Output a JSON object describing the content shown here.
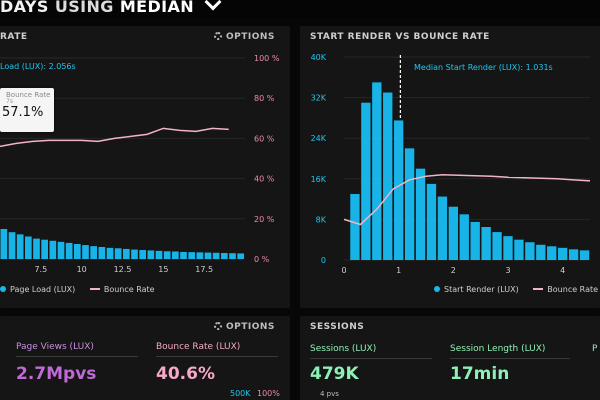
{
  "header": {
    "title_prefix": "DAYS",
    "title_mid": "USING",
    "title_bold": "MEDIAN"
  },
  "left_panel": {
    "title": "RATE",
    "options_label": "OPTIONS",
    "median_note": "Load (LUX): 2.056s",
    "tooltip": {
      "line1": "Bounce Rate",
      "line2": "7s",
      "value": "57.1%"
    },
    "legend": [
      "Page Load (LUX)",
      "Bounce Rate"
    ]
  },
  "right_panel": {
    "title": "START RENDER VS BOUNCE RATE",
    "median_note": "Median Start Render (LUX): 1.031s",
    "legend": [
      "Start Render (LUX)",
      "Bounce Rate"
    ]
  },
  "bottom_left": {
    "options_label": "OPTIONS",
    "metrics": [
      {
        "label": "Page Views (LUX)",
        "value": "2.7Mpvs"
      },
      {
        "label": "Bounce Rate (LUX)",
        "value": "40.6%"
      }
    ],
    "scale_ticks": [
      "500K",
      "100%"
    ]
  },
  "bottom_right": {
    "title": "SESSIONS",
    "metrics": [
      {
        "label": "Sessions (LUX)",
        "value": "479K",
        "sub": "4 pvs"
      },
      {
        "label": "Session Length (LUX)",
        "value": "17min"
      },
      {
        "label": "P",
        "value": ""
      }
    ]
  },
  "colors": {
    "bar": "#18b4e8",
    "line": "#f3b3c5",
    "pink_axis": "#f08aa8",
    "cyan_axis": "#1cc8f0",
    "green_value": "#8ff0b6",
    "purple_value": "#c06ad6",
    "pink_value": "#f6a8c8"
  },
  "chart_data": [
    {
      "type": "bar",
      "title": "",
      "x_ticks": [
        "7.5",
        "10",
        "12.5",
        "15",
        "17.5"
      ],
      "y_right_ticks": [
        "100 %",
        "80 %",
        "60 %",
        "40 %",
        "20 %",
        "0 %"
      ],
      "xlim": [
        5,
        20
      ],
      "ylim_bounce": [
        0,
        100
      ],
      "series": [
        {
          "name": "Page Load (LUX)",
          "x": [
            5.0,
            5.5,
            6.0,
            6.5,
            7.0,
            7.5,
            8.0,
            8.5,
            9.0,
            9.5,
            10.0,
            10.5,
            11.0,
            11.5,
            12.0,
            12.5,
            13.0,
            13.5,
            14.0,
            14.5,
            15.0,
            15.5,
            16.0,
            16.5,
            17.0,
            17.5,
            18.0,
            18.5,
            19.0,
            19.5
          ],
          "values": [
            14,
            12.5,
            11.5,
            10.5,
            9.5,
            9,
            8.5,
            8,
            7.5,
            7,
            6.5,
            6,
            5.6,
            5.2,
            5,
            4.7,
            4.4,
            4.2,
            4,
            3.8,
            3.6,
            3.5,
            3.3,
            3.2,
            3.1,
            3,
            2.9,
            2.8,
            2.7,
            2.6
          ]
        },
        {
          "name": "Bounce Rate",
          "x": [
            5,
            6,
            7,
            8,
            9,
            10,
            11,
            12,
            13,
            14,
            15,
            16,
            17,
            18,
            19
          ],
          "values": [
            56,
            57.5,
            58.5,
            59,
            59,
            59,
            58.5,
            60,
            61,
            62,
            65,
            64,
            63.5,
            65,
            64.5
          ]
        }
      ]
    },
    {
      "type": "bar",
      "title": "START RENDER VS BOUNCE RATE",
      "xlabel": "",
      "y_left_ticks": [
        "40K",
        "32K",
        "24K",
        "16K",
        "8K",
        "0"
      ],
      "x_ticks": [
        "0",
        "1",
        "2",
        "3",
        "4"
      ],
      "xlim": [
        0,
        4.5
      ],
      "ylim": [
        0,
        40000
      ],
      "median_x": 1.031,
      "series": [
        {
          "name": "Start Render (LUX)",
          "x": [
            0.2,
            0.4,
            0.6,
            0.8,
            1.0,
            1.2,
            1.4,
            1.6,
            1.8,
            2.0,
            2.2,
            2.4,
            2.6,
            2.8,
            3.0,
            3.2,
            3.4,
            3.6,
            3.8,
            4.0,
            4.2,
            4.4
          ],
          "values": [
            13000,
            31000,
            35000,
            33000,
            27500,
            22000,
            18000,
            15000,
            12500,
            10500,
            9000,
            7500,
            6500,
            5500,
            4700,
            4000,
            3500,
            3000,
            2700,
            2400,
            2100,
            1900
          ]
        },
        {
          "name": "Bounce Rate",
          "x": [
            0.0,
            0.3,
            0.6,
            0.9,
            1.2,
            1.5,
            1.8,
            2.1,
            2.4,
            2.7,
            3.0,
            3.3,
            3.6,
            3.9,
            4.2,
            4.5
          ],
          "values": [
            8000,
            7000,
            10000,
            14000,
            15800,
            16500,
            16800,
            16700,
            16600,
            16500,
            16300,
            16200,
            16100,
            16000,
            15800,
            15600
          ]
        }
      ]
    }
  ]
}
